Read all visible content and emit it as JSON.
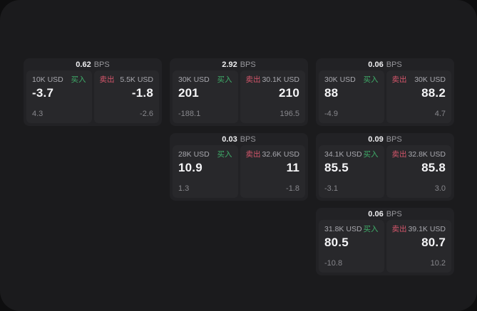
{
  "colors": {
    "backdrop": "#0e0e0f",
    "window_bg": "#1b1b1d",
    "card_bg": "#222225",
    "panel_bg": "#28282b",
    "buy_green": "#3fae6a",
    "sell_red": "#d5566b"
  },
  "cards": [
    {
      "spread": "0.62",
      "spread_unit": "BPS",
      "buy": {
        "amount": "10K USD",
        "label": "买入",
        "price": "-3.7",
        "sub": "4.3"
      },
      "sell": {
        "label": "卖出",
        "amount": "5.5K USD",
        "price": "-1.8",
        "sub": "-2.6"
      }
    },
    {
      "spread": "2.92",
      "spread_unit": "BPS",
      "buy": {
        "amount": "30K USD",
        "label": "买入",
        "price": "201",
        "sub": "-188.1"
      },
      "sell": {
        "label": "卖出",
        "amount": "30.1K USD",
        "price": "210",
        "sub": "196.5"
      }
    },
    {
      "spread": "0.06",
      "spread_unit": "BPS",
      "buy": {
        "amount": "30K USD",
        "label": "买入",
        "price": "88",
        "sub": "-4.9"
      },
      "sell": {
        "label": "卖出",
        "amount": "30K USD",
        "price": "88.2",
        "sub": "4.7"
      }
    },
    {
      "spread": "0.03",
      "spread_unit": "BPS",
      "buy": {
        "amount": "28K USD",
        "label": "买入",
        "price": "10.9",
        "sub": "1.3"
      },
      "sell": {
        "label": "卖出",
        "amount": "32.6K USD",
        "price": "11",
        "sub": "-1.8"
      }
    },
    {
      "spread": "0.09",
      "spread_unit": "BPS",
      "buy": {
        "amount": "34.1K USD",
        "label": "买入",
        "price": "85.5",
        "sub": "-3.1"
      },
      "sell": {
        "label": "卖出",
        "amount": "32.8K USD",
        "price": "85.8",
        "sub": "3.0"
      }
    },
    {
      "spread": "0.06",
      "spread_unit": "BPS",
      "buy": {
        "amount": "31.8K USD",
        "label": "买入",
        "price": "80.5",
        "sub": "-10.8"
      },
      "sell": {
        "label": "卖出",
        "amount": "39.1K USD",
        "price": "80.7",
        "sub": "10.2"
      }
    }
  ]
}
